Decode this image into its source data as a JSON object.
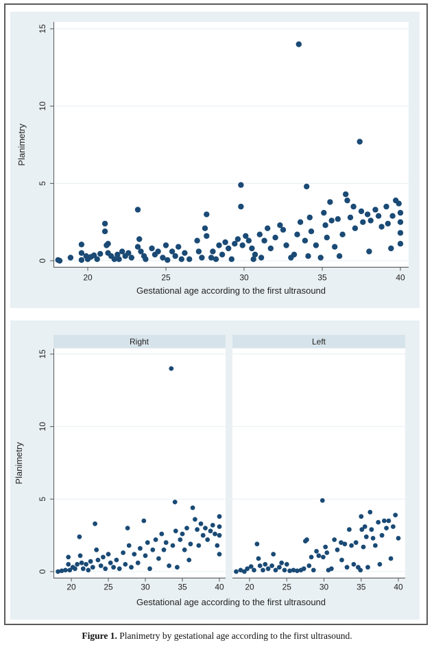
{
  "caption": {
    "label": "Figure 1.",
    "text": " Planimetry by gestational age according to the first ultrasound."
  },
  "colors": {
    "marker": "#1a4a75",
    "panel_bg": "#e9f0f3",
    "facet_header_bg": "#d7e3ea",
    "grid": "#eaf1f4",
    "axis": "#555555"
  },
  "chart_data": [
    {
      "type": "scatter",
      "title": "",
      "xlabel": "Gestational age according to the first ultrasound",
      "ylabel": "Planimetry",
      "xlim": [
        18,
        40
      ],
      "ylim": [
        0,
        15
      ],
      "xticks": [
        "20",
        "25",
        "30",
        "35",
        "40"
      ],
      "yticks": [
        "0",
        "5",
        "10",
        "15"
      ],
      "grid": true,
      "points": [
        [
          18.1,
          0.05
        ],
        [
          18.2,
          0.0
        ],
        [
          18.9,
          0.2
        ],
        [
          19.6,
          1.05
        ],
        [
          19.6,
          0.5
        ],
        [
          19.6,
          0.05
        ],
        [
          19.9,
          0.3
        ],
        [
          20.0,
          0.1
        ],
        [
          20.2,
          0.25
        ],
        [
          20.4,
          0.35
        ],
        [
          20.6,
          0.1
        ],
        [
          20.8,
          0.45
        ],
        [
          21.1,
          2.4
        ],
        [
          21.1,
          1.9
        ],
        [
          21.2,
          1.0
        ],
        [
          21.3,
          1.1
        ],
        [
          21.3,
          0.5
        ],
        [
          21.5,
          0.3
        ],
        [
          21.7,
          0.1
        ],
        [
          21.9,
          0.4
        ],
        [
          22.0,
          0.1
        ],
        [
          22.2,
          0.6
        ],
        [
          22.4,
          0.3
        ],
        [
          22.6,
          0.5
        ],
        [
          22.8,
          0.2
        ],
        [
          23.2,
          3.3
        ],
        [
          23.2,
          0.9
        ],
        [
          23.3,
          1.4
        ],
        [
          23.4,
          0.6
        ],
        [
          23.6,
          0.3
        ],
        [
          23.7,
          0.1
        ],
        [
          24.1,
          0.8
        ],
        [
          24.3,
          0.4
        ],
        [
          24.5,
          0.6
        ],
        [
          24.8,
          0.2
        ],
        [
          25.0,
          1.0
        ],
        [
          25.1,
          0.05
        ],
        [
          25.4,
          0.6
        ],
        [
          25.6,
          0.3
        ],
        [
          25.8,
          0.9
        ],
        [
          26.0,
          0.1
        ],
        [
          26.2,
          0.5
        ],
        [
          26.5,
          0.1
        ],
        [
          27.0,
          1.3
        ],
        [
          27.1,
          0.6
        ],
        [
          27.3,
          0.2
        ],
        [
          27.5,
          2.1
        ],
        [
          27.6,
          3.0
        ],
        [
          27.6,
          1.6
        ],
        [
          27.9,
          0.2
        ],
        [
          28.0,
          0.6
        ],
        [
          28.2,
          0.1
        ],
        [
          28.4,
          1.0
        ],
        [
          28.6,
          0.4
        ],
        [
          28.8,
          1.2
        ],
        [
          29.0,
          0.8
        ],
        [
          29.2,
          0.1
        ],
        [
          29.4,
          1.1
        ],
        [
          29.6,
          1.4
        ],
        [
          29.8,
          4.9
        ],
        [
          29.8,
          3.5
        ],
        [
          29.9,
          1.0
        ],
        [
          30.1,
          1.6
        ],
        [
          30.3,
          1.3
        ],
        [
          30.5,
          0.8
        ],
        [
          30.6,
          0.1
        ],
        [
          30.7,
          0.4
        ],
        [
          31.0,
          1.7
        ],
        [
          31.1,
          0.2
        ],
        [
          31.3,
          1.3
        ],
        [
          31.5,
          2.1
        ],
        [
          31.7,
          0.8
        ],
        [
          32.0,
          1.5
        ],
        [
          32.3,
          2.3
        ],
        [
          32.5,
          2.0
        ],
        [
          32.7,
          1.0
        ],
        [
          33.0,
          0.2
        ],
        [
          33.2,
          0.4
        ],
        [
          33.4,
          1.7
        ],
        [
          33.6,
          2.5
        ],
        [
          33.5,
          14.0
        ],
        [
          33.9,
          1.3
        ],
        [
          34.0,
          4.8
        ],
        [
          34.1,
          0.3
        ],
        [
          34.2,
          2.8
        ],
        [
          34.3,
          1.9
        ],
        [
          34.6,
          1.0
        ],
        [
          34.9,
          0.2
        ],
        [
          35.1,
          3.1
        ],
        [
          35.2,
          2.3
        ],
        [
          35.3,
          1.5
        ],
        [
          35.5,
          3.8
        ],
        [
          35.6,
          2.6
        ],
        [
          35.8,
          0.9
        ],
        [
          36.0,
          2.7
        ],
        [
          36.1,
          0.3
        ],
        [
          36.3,
          1.7
        ],
        [
          36.5,
          4.3
        ],
        [
          36.6,
          3.9
        ],
        [
          36.8,
          2.8
        ],
        [
          37.0,
          3.5
        ],
        [
          37.1,
          2.1
        ],
        [
          37.4,
          7.7
        ],
        [
          37.5,
          3.2
        ],
        [
          37.6,
          2.5
        ],
        [
          37.9,
          3.0
        ],
        [
          38.0,
          0.6
        ],
        [
          38.1,
          2.6
        ],
        [
          38.4,
          3.3
        ],
        [
          38.6,
          2.9
        ],
        [
          38.8,
          2.2
        ],
        [
          39.1,
          3.5
        ],
        [
          39.2,
          2.4
        ],
        [
          39.4,
          0.8
        ],
        [
          39.5,
          2.9
        ],
        [
          39.7,
          3.9
        ],
        [
          39.9,
          3.7
        ],
        [
          40.0,
          3.1
        ],
        [
          40.0,
          1.8
        ],
        [
          40.0,
          2.5
        ],
        [
          40.0,
          1.1
        ]
      ]
    },
    {
      "type": "scatter",
      "facet": "Right",
      "xlabel": "Gestational age according to the first ultrasound",
      "ylabel": "Planimetry",
      "xlim": [
        18,
        40
      ],
      "ylim": [
        0,
        15
      ],
      "xticks": [
        "20",
        "25",
        "30",
        "35",
        "40"
      ],
      "yticks": [
        "0",
        "5",
        "10",
        "15"
      ],
      "grid": true,
      "points": [
        [
          18.2,
          0.0
        ],
        [
          18.7,
          0.05
        ],
        [
          19.2,
          0.1
        ],
        [
          19.6,
          1.0
        ],
        [
          19.6,
          0.5
        ],
        [
          19.8,
          0.1
        ],
        [
          20.2,
          0.3
        ],
        [
          20.5,
          0.2
        ],
        [
          20.8,
          0.5
        ],
        [
          21.1,
          2.4
        ],
        [
          21.2,
          1.1
        ],
        [
          21.4,
          0.6
        ],
        [
          21.6,
          0.2
        ],
        [
          22.0,
          0.5
        ],
        [
          22.3,
          0.1
        ],
        [
          22.6,
          0.7
        ],
        [
          22.9,
          0.3
        ],
        [
          23.2,
          3.3
        ],
        [
          23.4,
          1.5
        ],
        [
          23.6,
          0.8
        ],
        [
          24.0,
          0.4
        ],
        [
          24.3,
          1.0
        ],
        [
          24.6,
          0.2
        ],
        [
          25.0,
          1.2
        ],
        [
          25.3,
          0.6
        ],
        [
          25.7,
          0.3
        ],
        [
          26.1,
          0.8
        ],
        [
          26.5,
          0.2
        ],
        [
          27.0,
          1.3
        ],
        [
          27.3,
          0.5
        ],
        [
          27.6,
          3.0
        ],
        [
          27.8,
          1.8
        ],
        [
          28.1,
          0.3
        ],
        [
          28.5,
          1.2
        ],
        [
          29.0,
          0.6
        ],
        [
          29.3,
          1.6
        ],
        [
          29.8,
          3.5
        ],
        [
          30.0,
          1.1
        ],
        [
          30.3,
          2.0
        ],
        [
          30.6,
          0.2
        ],
        [
          31.0,
          1.5
        ],
        [
          31.4,
          2.2
        ],
        [
          31.8,
          0.9
        ],
        [
          32.2,
          2.6
        ],
        [
          32.5,
          1.5
        ],
        [
          32.8,
          2.0
        ],
        [
          33.2,
          0.4
        ],
        [
          33.5,
          14.0
        ],
        [
          33.7,
          1.8
        ],
        [
          34.0,
          4.8
        ],
        [
          34.1,
          2.8
        ],
        [
          34.3,
          0.3
        ],
        [
          34.7,
          2.2
        ],
        [
          35.0,
          2.6
        ],
        [
          35.3,
          1.5
        ],
        [
          35.6,
          3.0
        ],
        [
          35.9,
          0.8
        ],
        [
          36.1,
          1.9
        ],
        [
          36.4,
          4.4
        ],
        [
          36.7,
          3.6
        ],
        [
          37.0,
          2.9
        ],
        [
          37.2,
          1.8
        ],
        [
          37.5,
          3.3
        ],
        [
          37.8,
          2.5
        ],
        [
          38.1,
          3.0
        ],
        [
          38.4,
          2.2
        ],
        [
          38.8,
          2.8
        ],
        [
          39.1,
          3.2
        ],
        [
          39.4,
          2.6
        ],
        [
          39.7,
          1.8
        ],
        [
          40.0,
          3.8
        ],
        [
          40.0,
          3.1
        ],
        [
          40.0,
          1.2
        ],
        [
          40.0,
          2.5
        ]
      ]
    },
    {
      "type": "scatter",
      "facet": "Left",
      "xlabel": "Gestational age according to the first ultrasound",
      "ylabel": "Planimetry",
      "xlim": [
        18,
        40
      ],
      "ylim": [
        0,
        15
      ],
      "xticks": [
        "20",
        "25",
        "30",
        "35",
        "40"
      ],
      "yticks": [
        "0",
        "5",
        "10",
        "15"
      ],
      "grid": true,
      "points": [
        [
          18.2,
          0.0
        ],
        [
          18.8,
          0.1
        ],
        [
          19.3,
          0.0
        ],
        [
          19.7,
          0.2
        ],
        [
          20.2,
          0.35
        ],
        [
          20.6,
          0.1
        ],
        [
          21.0,
          1.9
        ],
        [
          21.2,
          0.9
        ],
        [
          21.4,
          0.4
        ],
        [
          21.8,
          0.1
        ],
        [
          22.1,
          0.5
        ],
        [
          22.5,
          0.2
        ],
        [
          23.0,
          0.4
        ],
        [
          23.2,
          1.2
        ],
        [
          23.5,
          0.1
        ],
        [
          24.0,
          0.3
        ],
        [
          24.3,
          0.6
        ],
        [
          24.7,
          0.1
        ],
        [
          25.0,
          0.5
        ],
        [
          25.4,
          0.05
        ],
        [
          25.9,
          0.1
        ],
        [
          26.4,
          0.05
        ],
        [
          26.9,
          0.1
        ],
        [
          27.3,
          0.2
        ],
        [
          27.5,
          2.1
        ],
        [
          27.7,
          2.2
        ],
        [
          28.0,
          0.4
        ],
        [
          28.3,
          1.0
        ],
        [
          28.6,
          0.1
        ],
        [
          29.0,
          1.4
        ],
        [
          29.3,
          1.1
        ],
        [
          29.8,
          4.9
        ],
        [
          29.9,
          1.0
        ],
        [
          30.2,
          1.7
        ],
        [
          30.4,
          1.3
        ],
        [
          30.6,
          0.1
        ],
        [
          31.0,
          0.2
        ],
        [
          31.4,
          2.2
        ],
        [
          31.8,
          1.5
        ],
        [
          32.3,
          2.0
        ],
        [
          32.4,
          0.8
        ],
        [
          32.8,
          1.9
        ],
        [
          33.1,
          0.3
        ],
        [
          33.4,
          2.9
        ],
        [
          33.7,
          1.8
        ],
        [
          34.0,
          0.5
        ],
        [
          34.3,
          2.0
        ],
        [
          34.6,
          0.3
        ],
        [
          34.9,
          0.1
        ],
        [
          35.0,
          3.8
        ],
        [
          35.1,
          2.9
        ],
        [
          35.3,
          1.7
        ],
        [
          35.5,
          3.1
        ],
        [
          35.7,
          2.4
        ],
        [
          35.9,
          0.3
        ],
        [
          36.2,
          4.1
        ],
        [
          36.4,
          2.9
        ],
        [
          36.6,
          2.3
        ],
        [
          36.9,
          1.8
        ],
        [
          37.3,
          3.4
        ],
        [
          37.5,
          0.5
        ],
        [
          37.8,
          2.5
        ],
        [
          38.1,
          3.5
        ],
        [
          38.4,
          3.0
        ],
        [
          38.7,
          3.5
        ],
        [
          39.0,
          0.9
        ],
        [
          39.3,
          3.1
        ],
        [
          39.6,
          3.9
        ],
        [
          40.0,
          2.3
        ]
      ]
    }
  ],
  "facets": [
    "Right",
    "Left"
  ]
}
